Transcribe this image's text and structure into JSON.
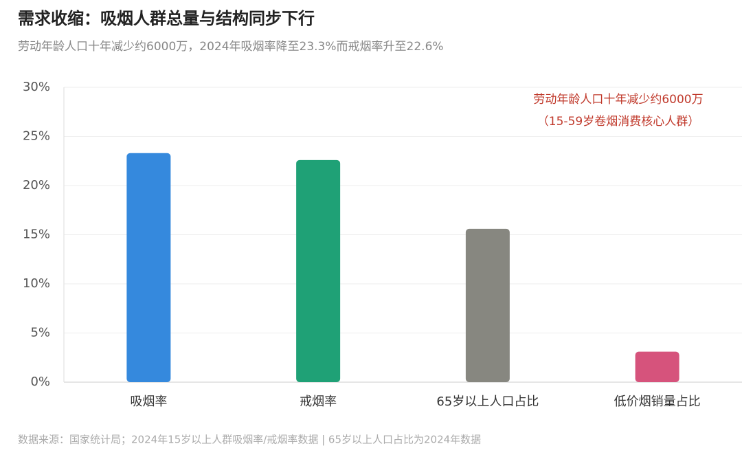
{
  "chart_data": {
    "type": "bar",
    "title": "需求收缩：吸烟人群总量与结构同步下行",
    "subtitle": "劳动年龄人口十年减少约6000万，2024年吸烟率降至23.3%而戒烟率升至22.6%",
    "categories": [
      "吸烟率",
      "戒烟率",
      "65岁以上人口占比",
      "低价烟销量占比"
    ],
    "values": [
      23.3,
      22.6,
      15.6,
      3.1
    ],
    "colors": [
      "#3589dd",
      "#1fa176",
      "#878780",
      "#d6537c"
    ],
    "ylim": [
      0,
      30
    ],
    "yticks": [
      {
        "value": 0,
        "label": "0%"
      },
      {
        "value": 5,
        "label": "5%"
      },
      {
        "value": 10,
        "label": "10%"
      },
      {
        "value": 15,
        "label": "15%"
      },
      {
        "value": 20,
        "label": "20%"
      },
      {
        "value": 25,
        "label": "25%"
      },
      {
        "value": 30,
        "label": "30%"
      }
    ],
    "grid": true,
    "annotations": [
      "劳动年龄人口十年减少约6000万",
      "（15-59岁卷烟消费核心人群）"
    ],
    "source": "数据来源：国家统计局；2024年15岁以上人群吸烟率/戒烟率数据 | 65岁以上人口占比为2024年数据"
  }
}
